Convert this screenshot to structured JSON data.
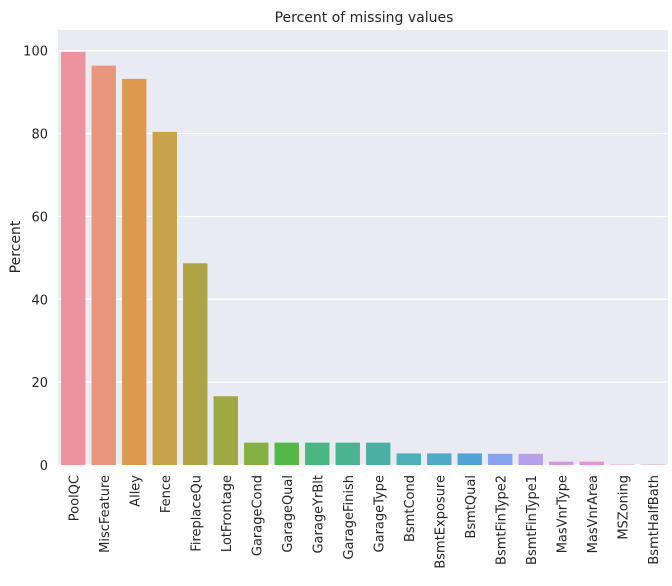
{
  "chart_data": {
    "type": "bar",
    "title": "Percent of missing values",
    "xlabel": "",
    "ylabel": "Percent",
    "ylim": [
      0,
      105
    ],
    "yticks": [
      0,
      20,
      40,
      60,
      80,
      100
    ],
    "grid": true,
    "legend": "none",
    "background_color": "#eaeaf2",
    "categories": [
      "PoolQC",
      "MiscFeature",
      "Alley",
      "Fence",
      "FireplaceQu",
      "LotFrontage",
      "GarageCond",
      "GarageQual",
      "GarageYrBlt",
      "GarageFinish",
      "GarageType",
      "BsmtCond",
      "BsmtExposure",
      "BsmtQual",
      "BsmtFinType2",
      "BsmtFinType1",
      "MasVnrType",
      "MasVnrArea",
      "MSZoning",
      "BsmtHalfBath"
    ],
    "values": [
      99.7,
      96.4,
      93.2,
      80.4,
      48.7,
      16.6,
      5.4,
      5.4,
      5.4,
      5.4,
      5.4,
      2.8,
      2.8,
      2.8,
      2.7,
      2.7,
      0.8,
      0.8,
      0.1,
      0.1
    ],
    "colors": [
      "#ed93a0",
      "#e8977e",
      "#dd9a4e",
      "#c8a14b",
      "#aea446",
      "#9ea944",
      "#83b043",
      "#54b748",
      "#4cb682",
      "#4bb38f",
      "#4bb0a3",
      "#4db0b8",
      "#4fa9c7",
      "#50a4d6",
      "#88a4ec",
      "#b6a0ec",
      "#d992e6",
      "#e98fdb",
      "#e98dc6",
      "#ed8db4"
    ]
  }
}
